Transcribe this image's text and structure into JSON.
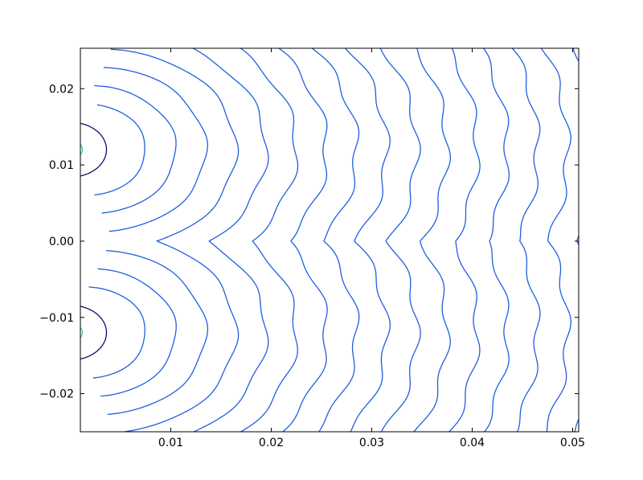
{
  "chart_data": {
    "type": "contour",
    "xlim": [
      0.001,
      0.0506
    ],
    "ylim": [
      -0.025,
      0.0253
    ],
    "xticks": [
      0.01,
      0.02,
      0.03,
      0.04,
      0.05
    ],
    "yticks": [
      {
        "value": -0.02,
        "label": "−0.02"
      },
      {
        "value": -0.01,
        "label": "−0.01"
      },
      {
        "value": 0,
        "label": "0.00"
      },
      0.01,
      0.02
    ],
    "color": "#1f5fe0"
  }
}
